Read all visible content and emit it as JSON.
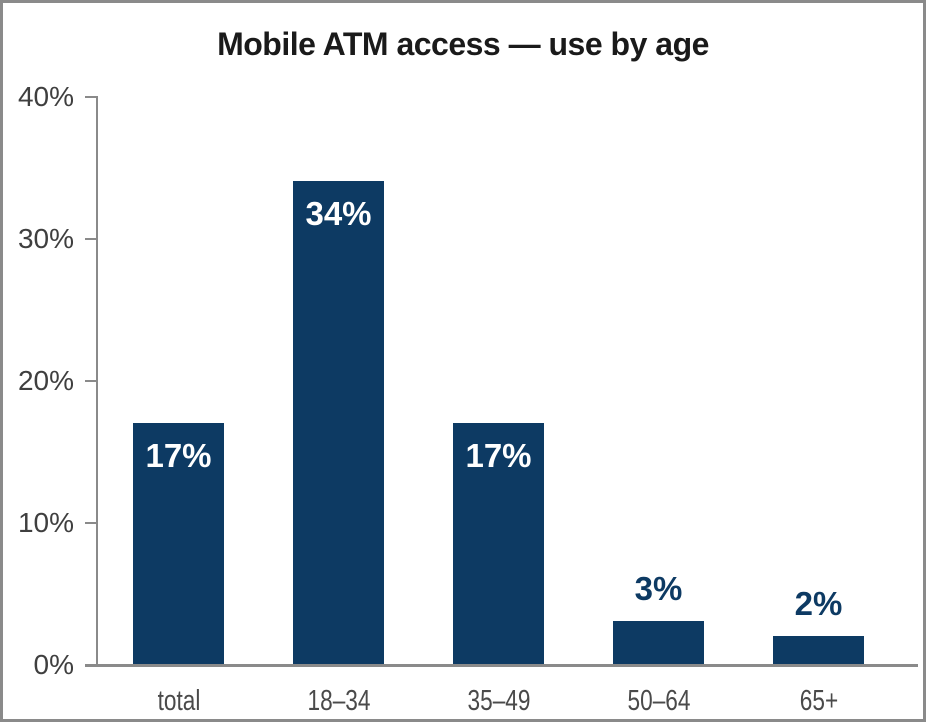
{
  "window": {
    "background_color": "#ffffff",
    "frame_color": "#8a8a8a"
  },
  "chart_data": {
    "type": "bar",
    "title": "Mobile ATM access — use by age",
    "categories": [
      "total",
      "18–34",
      "35–49",
      "50–64",
      "65+"
    ],
    "values": [
      17,
      34,
      17,
      3,
      2
    ],
    "value_labels": [
      "17%",
      "34%",
      "17%",
      "3%",
      "2%"
    ],
    "y_ticks": [
      "0%",
      "10%",
      "20%",
      "30%",
      "40%"
    ],
    "ylim": [
      0,
      40
    ],
    "xlabel": "",
    "ylabel": "",
    "grid": false,
    "legend": false,
    "bar_color": "#0d3a63",
    "value_label_inside_color": "#ffffff",
    "value_label_outside_color": "#0d3a63",
    "axis_color": "#8a8a8a",
    "y_tick_label_color": "#3f3f3f",
    "x_tick_label_color": "#4a4a4a",
    "title_color": "#1a1a1a"
  }
}
